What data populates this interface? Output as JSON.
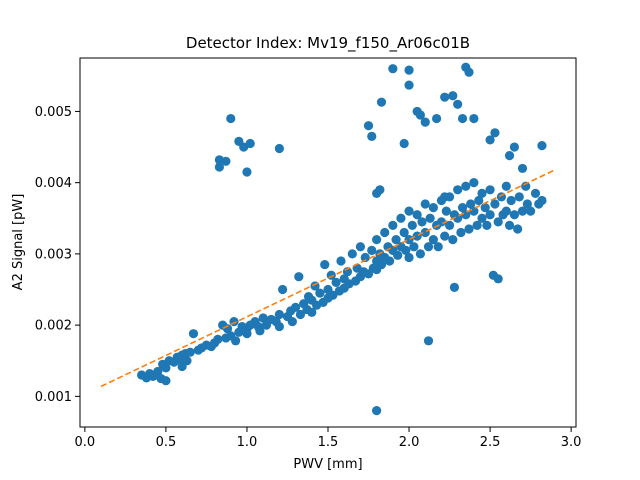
{
  "chart_data": {
    "type": "scatter",
    "title": "Detector Index: Mv19_f150_Ar06c01B",
    "xlabel": "PWV [mm]",
    "ylabel": "A2 Signal [pW]",
    "xlim": [
      -0.03,
      3.03
    ],
    "ylim": [
      0.00057,
      0.00575
    ],
    "x_ticks": [
      0.0,
      0.5,
      1.0,
      1.5,
      2.0,
      2.5,
      3.0
    ],
    "x_tick_labels": [
      "0.0",
      "0.5",
      "1.0",
      "1.5",
      "2.0",
      "2.5",
      "3.0"
    ],
    "y_ticks": [
      0.001,
      0.002,
      0.003,
      0.004,
      0.005
    ],
    "y_tick_labels": [
      "0.001",
      "0.002",
      "0.003",
      "0.004",
      "0.005"
    ],
    "grid": false,
    "colors": {
      "points": "#1f77b4",
      "fit": "#ff7f0e",
      "axes": "#000000",
      "background": "#ffffff"
    },
    "fit_line": {
      "name": "linear fit",
      "style": "dashed",
      "x": [
        0.1,
        2.9
      ],
      "y": [
        0.00114,
        0.00418
      ]
    },
    "series": [
      {
        "name": "data",
        "points": [
          [
            0.35,
            0.0013
          ],
          [
            0.38,
            0.00126
          ],
          [
            0.4,
            0.00132
          ],
          [
            0.42,
            0.00128
          ],
          [
            0.45,
            0.00135
          ],
          [
            0.47,
            0.00125
          ],
          [
            0.48,
            0.00145
          ],
          [
            0.5,
            0.0014
          ],
          [
            0.5,
            0.00122
          ],
          [
            0.52,
            0.0015
          ],
          [
            0.55,
            0.00148
          ],
          [
            0.57,
            0.00155
          ],
          [
            0.58,
            0.00152
          ],
          [
            0.6,
            0.00158
          ],
          [
            0.6,
            0.00142
          ],
          [
            0.62,
            0.0016
          ],
          [
            0.63,
            0.0015
          ],
          [
            0.65,
            0.00162
          ],
          [
            0.67,
            0.00188
          ],
          [
            0.7,
            0.00165
          ],
          [
            0.72,
            0.00168
          ],
          [
            0.75,
            0.00172
          ],
          [
            0.78,
            0.0017
          ],
          [
            0.8,
            0.00175
          ],
          [
            0.82,
            0.0018
          ],
          [
            0.85,
            0.002
          ],
          [
            0.87,
            0.00182
          ],
          [
            0.88,
            0.00195
          ],
          [
            0.9,
            0.00185
          ],
          [
            0.92,
            0.00205
          ],
          [
            0.93,
            0.00178
          ],
          [
            0.95,
            0.0019
          ],
          [
            0.97,
            0.00198
          ],
          [
            1.0,
            0.00195
          ],
          [
            1.0,
            0.00188
          ],
          [
            1.02,
            0.002
          ],
          [
            1.05,
            0.00205
          ],
          [
            1.07,
            0.00198
          ],
          [
            1.08,
            0.00192
          ],
          [
            1.1,
            0.0021
          ],
          [
            1.12,
            0.002
          ],
          [
            1.15,
            0.00208
          ],
          [
            1.18,
            0.00205
          ],
          [
            1.2,
            0.00215
          ],
          [
            1.2,
            0.00198
          ],
          [
            1.22,
            0.0025
          ],
          [
            1.25,
            0.00212
          ],
          [
            1.27,
            0.0022
          ],
          [
            1.28,
            0.00205
          ],
          [
            1.3,
            0.00225
          ],
          [
            1.32,
            0.00268
          ],
          [
            1.33,
            0.00215
          ],
          [
            1.35,
            0.0023
          ],
          [
            1.37,
            0.00222
          ],
          [
            1.38,
            0.0024
          ],
          [
            1.4,
            0.00235
          ],
          [
            1.4,
            0.00218
          ],
          [
            1.42,
            0.00255
          ],
          [
            1.43,
            0.00228
          ],
          [
            1.45,
            0.00245
          ],
          [
            1.47,
            0.00232
          ],
          [
            1.48,
            0.00285
          ],
          [
            1.5,
            0.0025
          ],
          [
            1.5,
            0.00238
          ],
          [
            1.52,
            0.0027
          ],
          [
            1.53,
            0.00242
          ],
          [
            1.55,
            0.0026
          ],
          [
            1.57,
            0.00248
          ],
          [
            1.58,
            0.0029
          ],
          [
            1.6,
            0.00265
          ],
          [
            1.6,
            0.00252
          ],
          [
            1.62,
            0.00275
          ],
          [
            1.63,
            0.00258
          ],
          [
            1.65,
            0.003
          ],
          [
            1.67,
            0.00262
          ],
          [
            1.68,
            0.0028
          ],
          [
            1.7,
            0.0031
          ],
          [
            1.7,
            0.00268
          ],
          [
            1.72,
            0.00275
          ],
          [
            1.73,
            0.00295
          ],
          [
            1.75,
            0.00272
          ],
          [
            1.77,
            0.00305
          ],
          [
            1.78,
            0.0028
          ],
          [
            1.8,
            0.0032
          ],
          [
            1.8,
            0.0029
          ],
          [
            1.8,
            0.00278
          ],
          [
            1.82,
            0.003
          ],
          [
            1.83,
            0.00285
          ],
          [
            1.85,
            0.0033
          ],
          [
            1.85,
            0.00295
          ],
          [
            1.87,
            0.0031
          ],
          [
            1.88,
            0.0029
          ],
          [
            1.9,
            0.0034
          ],
          [
            1.9,
            0.00305
          ],
          [
            1.92,
            0.0032
          ],
          [
            1.93,
            0.00298
          ],
          [
            1.95,
            0.0035
          ],
          [
            1.95,
            0.0031
          ],
          [
            1.97,
            0.0033
          ],
          [
            1.98,
            0.00305
          ],
          [
            2.0,
            0.0036
          ],
          [
            2.0,
            0.0032
          ],
          [
            2.0,
            0.00295
          ],
          [
            2.02,
            0.0034
          ],
          [
            2.03,
            0.0031
          ],
          [
            2.05,
            0.00355
          ],
          [
            2.05,
            0.00325
          ],
          [
            2.07,
            0.003
          ],
          [
            2.08,
            0.00345
          ],
          [
            2.1,
            0.0037
          ],
          [
            2.1,
            0.0033
          ],
          [
            2.12,
            0.0031
          ],
          [
            2.13,
            0.0035
          ],
          [
            2.15,
            0.00365
          ],
          [
            2.15,
            0.0032
          ],
          [
            2.17,
            0.0034
          ],
          [
            2.18,
            0.0031
          ],
          [
            2.2,
            0.00375
          ],
          [
            2.2,
            0.00345
          ],
          [
            2.22,
            0.00325
          ],
          [
            2.23,
            0.0036
          ],
          [
            2.25,
            0.0038
          ],
          [
            2.25,
            0.0034
          ],
          [
            2.27,
            0.0032
          ],
          [
            2.28,
            0.00355
          ],
          [
            2.3,
            0.0039
          ],
          [
            2.3,
            0.0035
          ],
          [
            2.32,
            0.0033
          ],
          [
            2.33,
            0.00365
          ],
          [
            2.35,
            0.00395
          ],
          [
            2.35,
            0.00355
          ],
          [
            2.37,
            0.00335
          ],
          [
            2.38,
            0.0037
          ],
          [
            2.4,
            0.004
          ],
          [
            2.4,
            0.0036
          ],
          [
            2.42,
            0.0034
          ],
          [
            2.43,
            0.00375
          ],
          [
            2.45,
            0.00385
          ],
          [
            2.45,
            0.0035
          ],
          [
            2.47,
            0.00365
          ],
          [
            2.48,
            0.0034
          ],
          [
            2.5,
            0.0039
          ],
          [
            2.5,
            0.00355
          ],
          [
            2.52,
            0.0027
          ],
          [
            2.53,
            0.0037
          ],
          [
            2.55,
            0.00345
          ],
          [
            2.55,
            0.00265
          ],
          [
            2.57,
            0.0038
          ],
          [
            2.58,
            0.00355
          ],
          [
            2.6,
            0.00395
          ],
          [
            2.6,
            0.0036
          ],
          [
            2.62,
            0.0034
          ],
          [
            2.63,
            0.00375
          ],
          [
            2.65,
            0.00355
          ],
          [
            2.67,
            0.00335
          ],
          [
            2.68,
            0.0038
          ],
          [
            2.7,
            0.0036
          ],
          [
            2.72,
            0.00395
          ],
          [
            2.73,
            0.0037
          ],
          [
            2.75,
            0.0036
          ],
          [
            2.78,
            0.00385
          ],
          [
            2.8,
            0.0037
          ],
          [
            2.82,
            0.00375
          ],
          [
            0.83,
            0.00422
          ],
          [
            0.83,
            0.00432
          ],
          [
            0.87,
            0.0043
          ],
          [
            0.9,
            0.0049
          ],
          [
            0.95,
            0.00458
          ],
          [
            0.98,
            0.0045
          ],
          [
            1.0,
            0.00415
          ],
          [
            1.02,
            0.00455
          ],
          [
            1.2,
            0.00448
          ],
          [
            1.75,
            0.0048
          ],
          [
            1.77,
            0.00465
          ],
          [
            1.8,
            0.00385
          ],
          [
            1.82,
            0.0039
          ],
          [
            1.83,
            0.00513
          ],
          [
            1.9,
            0.0056
          ],
          [
            1.97,
            0.00455
          ],
          [
            2.0,
            0.00537
          ],
          [
            2.0,
            0.00558
          ],
          [
            2.05,
            0.005
          ],
          [
            2.07,
            0.00495
          ],
          [
            2.1,
            0.00485
          ],
          [
            2.17,
            0.0049
          ],
          [
            2.22,
            0.0038
          ],
          [
            2.27,
            0.00522
          ],
          [
            2.3,
            0.0051
          ],
          [
            2.33,
            0.0049
          ],
          [
            2.35,
            0.00562
          ],
          [
            2.37,
            0.00555
          ],
          [
            2.4,
            0.0049
          ],
          [
            2.5,
            0.0046
          ],
          [
            2.53,
            0.0047
          ],
          [
            2.62,
            0.00438
          ],
          [
            2.65,
            0.0045
          ],
          [
            2.7,
            0.0042
          ],
          [
            2.82,
            0.00452
          ],
          [
            2.22,
            0.0052
          ],
          [
            1.8,
            0.0008
          ],
          [
            2.12,
            0.00178
          ],
          [
            2.28,
            0.00253
          ]
        ]
      }
    ]
  }
}
